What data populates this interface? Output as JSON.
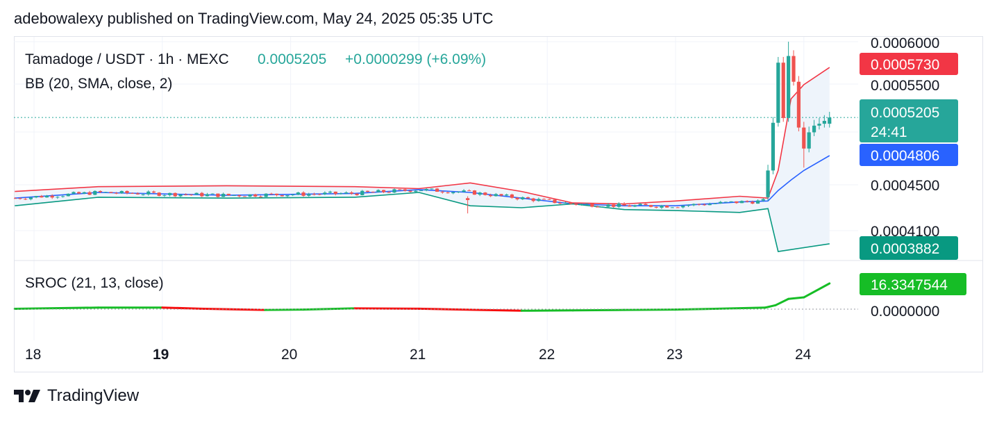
{
  "header": {
    "text": "adebowalexy published on TradingView.com, May 24, 2025 05:35 UTC"
  },
  "legend": {
    "symbol": "Tamadoge / USDT · 1h · MEXC",
    "price": "0.0005205",
    "change": "+0.0000299 (+6.09%)",
    "bb": "BB (20, SMA, close, 2)",
    "sroc": "SROC (21, 13, close)"
  },
  "price_axis": {
    "ticks": [
      "0.0006000",
      "0.0005500",
      "0.0004500",
      "0.0004100"
    ]
  },
  "price_labels": {
    "bb_upper": "0.0005730",
    "last": "0.0005205",
    "countdown": "24:41",
    "bb_basis": "0.0004806",
    "bb_lower": "0.0003882"
  },
  "sroc_axis": {
    "value_label": "16.3347544",
    "zero_label": "0.0000000"
  },
  "time_axis": {
    "labels": [
      "18",
      "19",
      "20",
      "21",
      "22",
      "23",
      "24"
    ],
    "bold_label": "19"
  },
  "footer": {
    "brand": "TradingView",
    "logo_icon": "tradingview-logo-icon"
  },
  "colors": {
    "up": "#26a69a",
    "down": "#ef5350",
    "bb_upper": "#f23645",
    "bb_basis": "#2962ff",
    "bb_lower": "#089981",
    "bb_fill": "#eef4fb",
    "sroc_up": "#16bd26",
    "sroc_down": "#f70d0d",
    "last_label": "#26a69a",
    "sroc_label": "#16bd26"
  },
  "chart_data": [
    {
      "type": "candlestick",
      "title": "Tamadoge / USDT · 1h · MEXC",
      "x_range": [
        "17.85",
        "24.3"
      ],
      "ylim": [
        0.00038,
        0.0006
      ],
      "last_price": 0.0005205,
      "candles_summary": "Sideways consolidation ~0.00043–0.00045 from 18 to 23, then spike on 23 late to ~0.0006, pullback to ~0.00048, recovering to 0.0005205",
      "series": [
        {
          "name": "BB upper",
          "points": [
            [
              17.85,
              0.000443
            ],
            [
              18.5,
              0.000448
            ],
            [
              19.5,
              0.000449
            ],
            [
              20.5,
              0.000448
            ],
            [
              21.0,
              0.000446
            ],
            [
              21.4,
              0.000452
            ],
            [
              21.8,
              0.000443
            ],
            [
              22.2,
              0.000431
            ],
            [
              22.6,
              0.00043
            ],
            [
              23.0,
              0.000433
            ],
            [
              23.5,
              0.000438
            ],
            [
              23.72,
              0.000436
            ],
            [
              23.8,
              0.000465
            ],
            [
              23.9,
              0.00054
            ],
            [
              24.0,
              0.000555
            ],
            [
              24.2,
              0.000573
            ]
          ]
        },
        {
          "name": "BB basis",
          "points": [
            [
              17.85,
              0.000436
            ],
            [
              18.5,
              0.000442
            ],
            [
              19.5,
              0.000439
            ],
            [
              20.5,
              0.000441
            ],
            [
              21.0,
              0.000445
            ],
            [
              21.4,
              0.000442
            ],
            [
              21.8,
              0.000436
            ],
            [
              22.2,
              0.00043
            ],
            [
              22.6,
              0.000428
            ],
            [
              23.0,
              0.000428
            ],
            [
              23.5,
              0.000432
            ],
            [
              23.72,
              0.000433
            ],
            [
              23.8,
              0.000444
            ],
            [
              23.9,
              0.000455
            ],
            [
              24.0,
              0.000465
            ],
            [
              24.2,
              0.0004806
            ]
          ]
        },
        {
          "name": "BB lower",
          "points": [
            [
              17.85,
              0.000428
            ],
            [
              18.5,
              0.000437
            ],
            [
              19.5,
              0.000436
            ],
            [
              20.5,
              0.000437
            ],
            [
              21.0,
              0.000442
            ],
            [
              21.4,
              0.000428
            ],
            [
              21.8,
              0.000426
            ],
            [
              22.2,
              0.00043
            ],
            [
              22.6,
              0.000424
            ],
            [
              23.0,
              0.000423
            ],
            [
              23.5,
              0.000421
            ],
            [
              23.72,
              0.000425
            ],
            [
              23.8,
              0.00038
            ],
            [
              24.2,
              0.0003882
            ]
          ]
        }
      ],
      "annotations": [
        {
          "label": "BB upper",
          "value": 0.000573
        },
        {
          "label": "last",
          "value": 0.0005205
        },
        {
          "label": "BB basis",
          "value": 0.0004806
        },
        {
          "label": "BB lower",
          "value": 0.0003882
        }
      ]
    },
    {
      "type": "line",
      "title": "SROC (21, 13, close)",
      "ylim": [
        -1,
        18
      ],
      "series": [
        {
          "name": "SROC",
          "points": [
            [
              17.85,
              0.2
            ],
            [
              18.5,
              1.0
            ],
            [
              19.0,
              1.0
            ],
            [
              19.3,
              0.3
            ],
            [
              19.8,
              -0.5
            ],
            [
              20.1,
              -0.3
            ],
            [
              20.5,
              0.5
            ],
            [
              21.0,
              0.3
            ],
            [
              21.3,
              -0.2
            ],
            [
              21.8,
              -1.0
            ],
            [
              22.2,
              -0.8
            ],
            [
              22.6,
              -0.5
            ],
            [
              23.0,
              -0.3
            ],
            [
              23.3,
              0.2
            ],
            [
              23.7,
              1.0
            ],
            [
              23.78,
              2.5
            ],
            [
              23.88,
              6.5
            ],
            [
              24.0,
              7.5
            ],
            [
              24.2,
              16.3347544
            ]
          ]
        }
      ]
    }
  ]
}
